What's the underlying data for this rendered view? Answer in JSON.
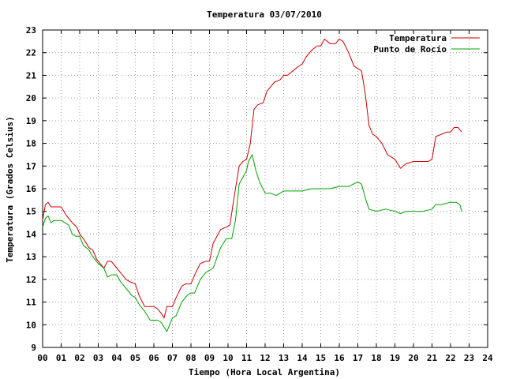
{
  "chart_data": {
    "type": "line",
    "title": "Temperatura 03/07/2010",
    "xlabel": "Tiempo (Hora Local Argentina)",
    "ylabel": "Temperatura (Grados Celsius)",
    "xlim": [
      0,
      24
    ],
    "ylim": [
      9,
      23
    ],
    "xticks": [
      "00",
      "01",
      "02",
      "03",
      "04",
      "05",
      "06",
      "07",
      "08",
      "09",
      "10",
      "11",
      "12",
      "13",
      "14",
      "15",
      "16",
      "17",
      "18",
      "19",
      "20",
      "21",
      "22",
      "23",
      "24"
    ],
    "yticks": [
      9,
      10,
      11,
      12,
      13,
      14,
      15,
      16,
      17,
      18,
      19,
      20,
      21,
      22,
      23
    ],
    "grid": true,
    "legend_position": "top-right",
    "series": [
      {
        "name": "Temperatura",
        "color": "#cc0000",
        "x": [
          0,
          0.15,
          0.3,
          0.45,
          0.6,
          1.0,
          1.3,
          1.6,
          1.85,
          2.0,
          2.2,
          2.5,
          2.7,
          2.9,
          3.1,
          3.3,
          3.5,
          3.7,
          4.0,
          4.2,
          4.5,
          4.7,
          5.0,
          5.2,
          5.5,
          5.8,
          6.0,
          6.2,
          6.4,
          6.55,
          6.7,
          7.0,
          7.2,
          7.5,
          7.7,
          8.0,
          8.2,
          8.5,
          8.8,
          9.0,
          9.2,
          9.6,
          9.9,
          10.1,
          10.3,
          10.6,
          10.8,
          11.0,
          11.2,
          11.4,
          11.6,
          11.9,
          12.1,
          12.3,
          12.5,
          12.8,
          13.0,
          13.2,
          13.5,
          13.8,
          14.0,
          14.2,
          14.5,
          14.8,
          15.0,
          15.2,
          15.5,
          15.8,
          16.0,
          16.2,
          16.5,
          16.8,
          17.0,
          17.2,
          17.4,
          17.6,
          17.8,
          18.0,
          18.3,
          18.6,
          19.0,
          19.3,
          19.6,
          20.0,
          20.4,
          20.8,
          21.0,
          21.2,
          21.5,
          21.8,
          22.0,
          22.2,
          22.4,
          22.6
        ],
        "values": [
          14.6,
          15.3,
          15.4,
          15.2,
          15.2,
          15.2,
          14.8,
          14.5,
          14.3,
          14.0,
          13.8,
          13.4,
          13.3,
          12.9,
          12.7,
          12.5,
          12.8,
          12.8,
          12.5,
          12.3,
          12.0,
          11.9,
          11.8,
          11.3,
          10.8,
          10.8,
          10.8,
          10.7,
          10.5,
          10.3,
          10.8,
          10.8,
          11.2,
          11.7,
          11.8,
          11.8,
          12.2,
          12.7,
          12.8,
          12.8,
          13.6,
          14.2,
          14.3,
          14.4,
          15.5,
          17.0,
          17.2,
          17.3,
          18.0,
          19.5,
          19.7,
          19.8,
          20.3,
          20.5,
          20.7,
          20.8,
          21.0,
          21.0,
          21.2,
          21.4,
          21.5,
          21.8,
          22.1,
          22.3,
          22.3,
          22.6,
          22.4,
          22.4,
          22.6,
          22.5,
          22.0,
          21.4,
          21.3,
          21.2,
          20.2,
          18.8,
          18.4,
          18.3,
          18.0,
          17.5,
          17.3,
          16.9,
          17.1,
          17.2,
          17.2,
          17.2,
          17.3,
          18.3,
          18.4,
          18.5,
          18.5,
          18.7,
          18.7,
          18.5
        ]
      },
      {
        "name": "Punto de Rocío",
        "color": "#00a000",
        "x": [
          0,
          0.15,
          0.3,
          0.45,
          0.6,
          1.0,
          1.4,
          1.6,
          1.8,
          2.0,
          2.2,
          2.5,
          2.7,
          3.0,
          3.3,
          3.5,
          3.7,
          4.0,
          4.2,
          4.5,
          4.8,
          5.0,
          5.2,
          5.5,
          5.8,
          6.0,
          6.2,
          6.4,
          6.55,
          6.7,
          7.0,
          7.2,
          7.5,
          7.8,
          8.0,
          8.2,
          8.5,
          8.8,
          9.0,
          9.2,
          9.6,
          9.9,
          10.2,
          10.4,
          10.6,
          11.0,
          11.1,
          11.3,
          11.5,
          11.7,
          12.0,
          12.3,
          12.6,
          13.0,
          13.4,
          14.0,
          14.5,
          15.0,
          15.5,
          16.0,
          16.5,
          17.0,
          17.2,
          17.4,
          17.6,
          18.0,
          18.5,
          19.0,
          19.3,
          19.6,
          20.0,
          20.5,
          21.0,
          21.2,
          21.5,
          22.0,
          22.3,
          22.5,
          22.6
        ],
        "values": [
          14.3,
          14.7,
          14.8,
          14.5,
          14.6,
          14.6,
          14.4,
          14.0,
          13.9,
          13.9,
          13.5,
          13.3,
          13.0,
          12.7,
          12.5,
          12.1,
          12.2,
          12.2,
          11.9,
          11.6,
          11.3,
          11.2,
          10.9,
          10.6,
          10.2,
          10.2,
          10.2,
          10.1,
          9.9,
          9.7,
          10.3,
          10.4,
          11.0,
          11.3,
          11.4,
          11.4,
          12.0,
          12.3,
          12.4,
          12.5,
          13.4,
          13.8,
          13.8,
          14.6,
          16.2,
          16.8,
          17.2,
          17.5,
          16.8,
          16.3,
          15.8,
          15.8,
          15.7,
          15.9,
          15.9,
          15.9,
          16.0,
          16.0,
          16.0,
          16.1,
          16.1,
          16.3,
          16.2,
          15.6,
          15.1,
          15.0,
          15.1,
          15.0,
          14.9,
          15.0,
          15.0,
          15.0,
          15.1,
          15.3,
          15.3,
          15.4,
          15.4,
          15.3,
          15.0
        ]
      }
    ]
  }
}
